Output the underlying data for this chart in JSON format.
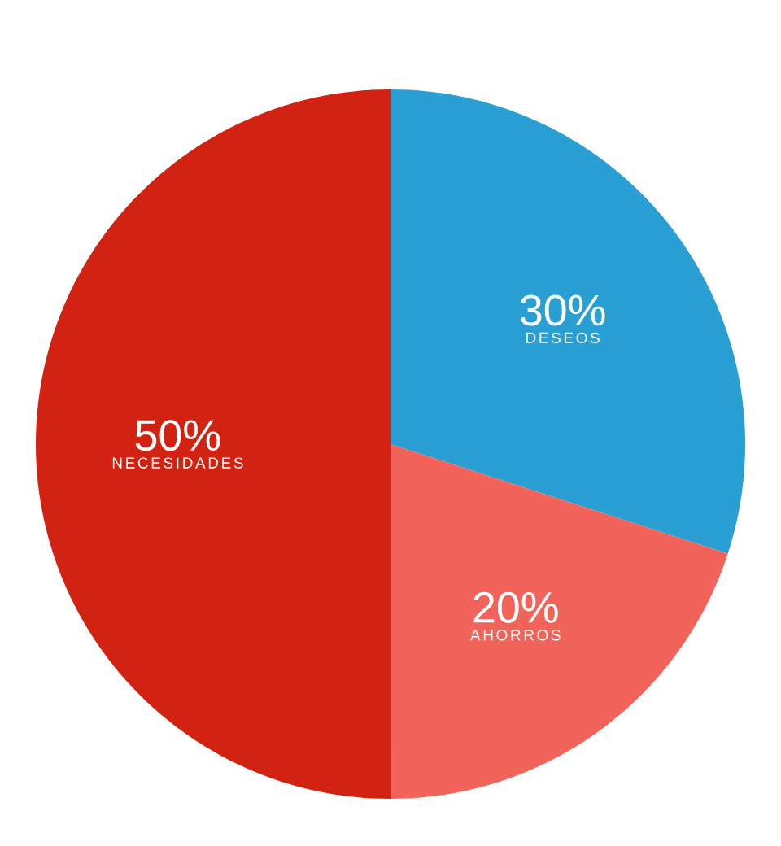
{
  "chart_data": {
    "type": "pie",
    "categories": [
      "DESEOS",
      "AHORROS",
      "NECESIDADES"
    ],
    "values": [
      30,
      20,
      50
    ],
    "colors": [
      "#2a9fd4",
      "#f2645a",
      "#d22312"
    ],
    "value_labels": [
      "30%",
      "20%",
      "50%"
    ]
  }
}
